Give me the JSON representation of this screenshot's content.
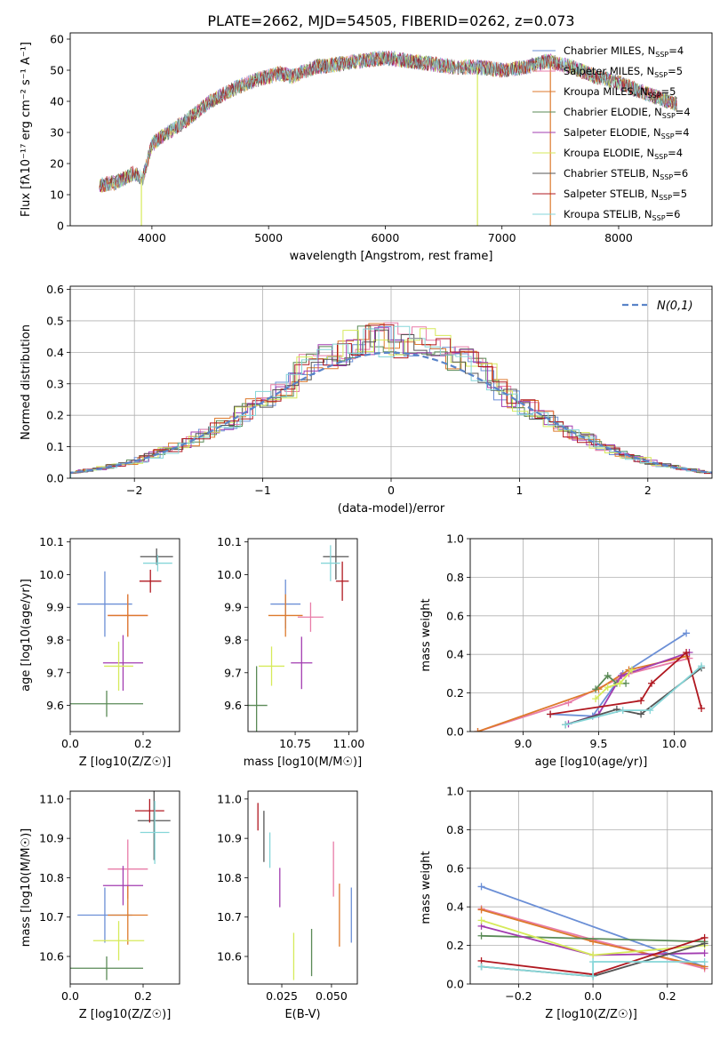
{
  "figure": {
    "title": "PLATE=2662, MJD=54505, FIBERID=0262, z=0.073"
  },
  "colors": {
    "c1": "#6b8fd6",
    "c2": "#e87ca8",
    "c3": "#dd7a2c",
    "c4": "#5a8a56",
    "c5": "#a23cb0",
    "c6": "#d6ea5a",
    "c7": "#555555",
    "c8": "#b01820",
    "c9": "#86d6d8",
    "gauss": "#5a84c8",
    "grid": "#b0b0b0"
  },
  "chart_data": [
    {
      "id": "spectrum",
      "type": "line",
      "xlabel": "wavelength [Angstrom, rest frame]",
      "ylabel": "Flux [fλ10⁻¹⁷ erg cm⁻² s⁻¹ A⁻¹]",
      "xlim": [
        3300,
        8800
      ],
      "ylim": [
        0,
        62
      ],
      "xticks": [
        4000,
        5000,
        6000,
        7000,
        8000
      ],
      "yticks": [
        0,
        10,
        20,
        30,
        40,
        50,
        60
      ],
      "grid": false,
      "legend": "top-right",
      "series": [
        {
          "name": "Chabrier MILES, N_SSP=4",
          "color": "#6b8fd6"
        },
        {
          "name": "Salpeter MILES, N_SSP=5",
          "color": "#e87ca8"
        },
        {
          "name": "Kroupa MILES, N_SSP=5",
          "color": "#dd7a2c"
        },
        {
          "name": "Chabrier ELODIE, N_SSP=4",
          "color": "#5a8a56"
        },
        {
          "name": "Salpeter ELODIE, N_SSP=4",
          "color": "#a23cb0"
        },
        {
          "name": "Kroupa ELODIE, N_SSP=4",
          "color": "#d6ea5a"
        },
        {
          "name": "Chabrier STELIB, N_SSP=6",
          "color": "#555555"
        },
        {
          "name": "Salpeter STELIB, N_SSP=5",
          "color": "#b01820"
        },
        {
          "name": "Kroupa STELIB, N_SSP=6",
          "color": "#86d6d8"
        }
      ],
      "profile": {
        "x": [
          3550,
          3700,
          3850,
          3920,
          4000,
          4100,
          4300,
          4500,
          4700,
          4900,
          5100,
          5200,
          5400,
          5600,
          5800,
          6000,
          6200,
          6400,
          6600,
          6800,
          7000,
          7200,
          7400,
          7600,
          7800,
          8000,
          8200,
          8500
        ],
        "y": [
          13,
          14,
          17,
          15,
          26,
          29,
          34,
          40,
          44,
          47,
          49,
          48,
          51,
          52,
          53,
          54,
          53,
          52,
          51,
          51,
          50,
          51,
          53,
          51,
          48,
          46,
          43,
          39
        ]
      }
    },
    {
      "id": "residuals",
      "type": "bar",
      "xlabel": "(data-model)/error",
      "ylabel": "Normed distribution",
      "xlim": [
        -2.5,
        2.5
      ],
      "ylim": [
        0,
        0.61
      ],
      "xticks": [
        -2,
        -1,
        0,
        1,
        2
      ],
      "yticks": [
        0,
        0.1,
        0.2,
        0.3,
        0.4,
        0.5,
        0.6
      ],
      "grid": true,
      "legend": "top-right",
      "legend_label": "N(0,1)",
      "gaussian": {
        "mean": 0,
        "sigma": 1
      }
    },
    {
      "id": "age_vs_Z",
      "type": "scatter",
      "xlabel": "Z [log10(Z/Z☉)]",
      "ylabel": "age  [log10(age/yr)]",
      "xlim": [
        0,
        0.3
      ],
      "ylim": [
        9.52,
        10.11
      ],
      "xticks": [
        0,
        0.2
      ],
      "yticks": [
        9.6,
        9.7,
        9.8,
        9.9,
        10.0,
        10.1
      ],
      "grid": false,
      "points": [
        {
          "x": 0.095,
          "y": 9.91,
          "xerr": 0.075,
          "yerr": 0.1,
          "color": "#6b8fd6"
        },
        {
          "x": 0.158,
          "y": 9.875,
          "xerr": 0.055,
          "yerr": 0.065,
          "color": "#e87ca8"
        },
        {
          "x": 0.158,
          "y": 9.875,
          "xerr": 0.055,
          "yerr": 0.065,
          "color": "#dd7a2c"
        },
        {
          "x": 0.1,
          "y": 9.605,
          "xerr": 0.1,
          "yerr": 0.04,
          "color": "#5a8a56"
        },
        {
          "x": 0.145,
          "y": 9.73,
          "xerr": 0.055,
          "yerr": 0.085,
          "color": "#a23cb0"
        },
        {
          "x": 0.133,
          "y": 9.72,
          "xerr": 0.04,
          "yerr": 0.075,
          "color": "#d6ea5a"
        },
        {
          "x": 0.237,
          "y": 10.055,
          "xerr": 0.045,
          "yerr": 0.025,
          "color": "#555555"
        },
        {
          "x": 0.22,
          "y": 9.98,
          "xerr": 0.03,
          "yerr": 0.035,
          "color": "#b01820"
        },
        {
          "x": 0.24,
          "y": 10.035,
          "xerr": 0.04,
          "yerr": 0.025,
          "color": "#86d6d8"
        }
      ]
    },
    {
      "id": "age_vs_mass",
      "type": "scatter",
      "xlabel": "mass [log10(M/M☉)]",
      "ylabel": "",
      "xlim": [
        10.53,
        11.04
      ],
      "ylim": [
        9.52,
        10.11
      ],
      "xticks": [
        10.75,
        11.0
      ],
      "yticks": [
        9.6,
        9.7,
        9.8,
        9.9,
        10.0,
        10.1
      ],
      "grid": false,
      "points": [
        {
          "x": 10.705,
          "y": 9.91,
          "xerr": 0.07,
          "yerr": 0.075,
          "color": "#6b8fd6"
        },
        {
          "x": 10.822,
          "y": 9.87,
          "xerr": 0.06,
          "yerr": 0.045,
          "color": "#e87ca8"
        },
        {
          "x": 10.705,
          "y": 9.875,
          "xerr": 0.08,
          "yerr": 0.065,
          "color": "#dd7a2c"
        },
        {
          "x": 10.57,
          "y": 9.6,
          "xerr": 0.05,
          "yerr": 0.12,
          "color": "#5a8a56"
        },
        {
          "x": 10.78,
          "y": 9.73,
          "xerr": 0.05,
          "yerr": 0.08,
          "color": "#a23cb0"
        },
        {
          "x": 10.64,
          "y": 9.72,
          "xerr": 0.06,
          "yerr": 0.06,
          "color": "#d6ea5a"
        },
        {
          "x": 10.94,
          "y": 10.055,
          "xerr": 0.06,
          "yerr": 0.07,
          "color": "#555555"
        },
        {
          "x": 10.97,
          "y": 9.98,
          "xerr": 0.03,
          "yerr": 0.06,
          "color": "#b01820"
        },
        {
          "x": 10.915,
          "y": 10.035,
          "xerr": 0.045,
          "yerr": 0.055,
          "color": "#86d6d8"
        }
      ]
    },
    {
      "id": "weight_vs_age",
      "type": "line",
      "xlabel": "age  [log10(age/yr)]",
      "ylabel": "mass weight",
      "xlim": [
        8.65,
        10.25
      ],
      "ylim": [
        0,
        1
      ],
      "xticks": [
        9.0,
        9.5,
        10.0
      ],
      "yticks": [
        0,
        0.2,
        0.4,
        0.6,
        0.8,
        1.0
      ],
      "grid": true,
      "series": [
        {
          "color": "#6b8fd6",
          "x": [
            9.18,
            9.46,
            9.66,
            10.08
          ],
          "y": [
            0.09,
            0.08,
            0.3,
            0.51
          ]
        },
        {
          "color": "#e87ca8",
          "x": [
            8.7,
            9.3,
            9.7,
            10.1
          ],
          "y": [
            0.0,
            0.15,
            0.3,
            0.38
          ]
        },
        {
          "color": "#dd7a2c",
          "x": [
            8.7,
            9.5,
            9.7,
            10.08
          ],
          "y": [
            0.0,
            0.22,
            0.32,
            0.39
          ]
        },
        {
          "color": "#5a8a56",
          "x": [
            9.48,
            9.56,
            9.62,
            9.68
          ],
          "y": [
            0.22,
            0.29,
            0.25,
            0.25
          ]
        },
        {
          "color": "#a23cb0",
          "x": [
            9.3,
            9.5,
            9.65,
            10.1
          ],
          "y": [
            0.04,
            0.09,
            0.29,
            0.41
          ]
        },
        {
          "color": "#d6ea5a",
          "x": [
            9.48,
            9.56,
            9.64,
            9.72
          ],
          "y": [
            0.17,
            0.23,
            0.25,
            0.32
          ]
        },
        {
          "color": "#555555",
          "x": [
            9.28,
            9.62,
            9.78,
            10.18
          ],
          "y": [
            0.035,
            0.115,
            0.09,
            0.33
          ]
        },
        {
          "color": "#b01820",
          "x": [
            9.18,
            9.78,
            9.85,
            10.08,
            10.18
          ],
          "y": [
            0.09,
            0.16,
            0.25,
            0.41,
            0.12
          ]
        },
        {
          "color": "#86d6d8",
          "x": [
            9.28,
            9.66,
            9.84,
            10.18
          ],
          "y": [
            0.035,
            0.11,
            0.11,
            0.34
          ]
        }
      ]
    },
    {
      "id": "mass_vs_Z",
      "type": "scatter",
      "xlabel": "Z [log10(Z/Z☉)]",
      "ylabel": "mass [log10(M/M☉)]",
      "xlim": [
        0,
        0.3
      ],
      "ylim": [
        10.53,
        11.02
      ],
      "xticks": [
        0,
        0.2
      ],
      "yticks": [
        10.6,
        10.7,
        10.8,
        10.9,
        11.0
      ],
      "grid": false,
      "points": [
        {
          "x": 0.095,
          "y": 10.705,
          "xerr": 0.075,
          "yerr": 0.07,
          "color": "#6b8fd6"
        },
        {
          "x": 0.158,
          "y": 10.822,
          "xerr": 0.055,
          "yerr": 0.075,
          "color": "#e87ca8"
        },
        {
          "x": 0.158,
          "y": 10.705,
          "xerr": 0.055,
          "yerr": 0.075,
          "color": "#dd7a2c"
        },
        {
          "x": 0.1,
          "y": 10.57,
          "xerr": 0.1,
          "yerr": 0.03,
          "color": "#5a8a56"
        },
        {
          "x": 0.145,
          "y": 10.78,
          "xerr": 0.055,
          "yerr": 0.05,
          "color": "#a23cb0"
        },
        {
          "x": 0.133,
          "y": 10.64,
          "xerr": 0.07,
          "yerr": 0.05,
          "color": "#d6ea5a"
        },
        {
          "x": 0.23,
          "y": 10.945,
          "xerr": 0.045,
          "yerr": 0.1,
          "color": "#555555"
        },
        {
          "x": 0.218,
          "y": 10.97,
          "xerr": 0.04,
          "yerr": 0.03,
          "color": "#b01820"
        },
        {
          "x": 0.232,
          "y": 10.915,
          "xerr": 0.04,
          "yerr": 0.08,
          "color": "#86d6d8"
        }
      ]
    },
    {
      "id": "mass_vs_EBV",
      "type": "scatter",
      "xlabel": "E(B-V)",
      "ylabel": "",
      "xlim": [
        0.008,
        0.063
      ],
      "ylim": [
        10.53,
        11.02
      ],
      "xticks": [
        0.025,
        0.05
      ],
      "yticks": [
        10.6,
        10.7,
        10.8,
        10.9,
        11.0
      ],
      "grid": false,
      "points": [
        {
          "x": 0.06,
          "y": 10.705,
          "yerr": 0.07,
          "color": "#6b8fd6"
        },
        {
          "x": 0.051,
          "y": 10.822,
          "yerr": 0.07,
          "color": "#e87ca8"
        },
        {
          "x": 0.054,
          "y": 10.705,
          "yerr": 0.08,
          "color": "#dd7a2c"
        },
        {
          "x": 0.04,
          "y": 10.61,
          "yerr": 0.06,
          "color": "#5a8a56"
        },
        {
          "x": 0.024,
          "y": 10.775,
          "yerr": 0.05,
          "color": "#a23cb0"
        },
        {
          "x": 0.031,
          "y": 10.6,
          "yerr": 0.06,
          "color": "#d6ea5a"
        },
        {
          "x": 0.016,
          "y": 10.905,
          "yerr": 0.065,
          "color": "#555555"
        },
        {
          "x": 0.013,
          "y": 10.955,
          "yerr": 0.035,
          "color": "#b01820"
        },
        {
          "x": 0.019,
          "y": 10.87,
          "yerr": 0.045,
          "color": "#86d6d8"
        }
      ]
    },
    {
      "id": "weight_vs_Z",
      "type": "line",
      "xlabel": "Z [log10(Z/Z☉)]",
      "ylabel": "mass weight",
      "xlim": [
        -0.33,
        0.32
      ],
      "ylim": [
        0,
        1
      ],
      "xticks": [
        -0.2,
        0.0,
        0.2
      ],
      "yticks": [
        0,
        0.2,
        0.4,
        0.6,
        0.8,
        1.0
      ],
      "grid": true,
      "series": [
        {
          "color": "#6b8fd6",
          "x": [
            -0.3,
            0.3
          ],
          "y": [
            0.505,
            0.09
          ]
        },
        {
          "color": "#e87ca8",
          "x": [
            -0.3,
            0.0,
            0.3
          ],
          "y": [
            0.39,
            0.23,
            0.08
          ]
        },
        {
          "color": "#dd7a2c",
          "x": [
            -0.3,
            0.0,
            0.3
          ],
          "y": [
            0.385,
            0.22,
            0.09
          ]
        },
        {
          "color": "#5a8a56",
          "x": [
            -0.3,
            0.3
          ],
          "y": [
            0.25,
            0.22
          ]
        },
        {
          "color": "#a23cb0",
          "x": [
            -0.3,
            0.0,
            0.3
          ],
          "y": [
            0.3,
            0.15,
            0.16
          ]
        },
        {
          "color": "#d6ea5a",
          "x": [
            -0.3,
            0.0,
            0.3
          ],
          "y": [
            0.33,
            0.15,
            0.2
          ]
        },
        {
          "color": "#555555",
          "x": [
            -0.3,
            0.0,
            0.3
          ],
          "y": [
            0.09,
            0.04,
            0.21
          ]
        },
        {
          "color": "#b01820",
          "x": [
            -0.3,
            0.0,
            0.3
          ],
          "y": [
            0.12,
            0.05,
            0.24
          ]
        },
        {
          "color": "#86d6d8",
          "x": [
            -0.3,
            0.0,
            0.0,
            0.3
          ],
          "y": [
            0.09,
            0.04,
            0.115,
            0.115
          ]
        }
      ]
    }
  ]
}
